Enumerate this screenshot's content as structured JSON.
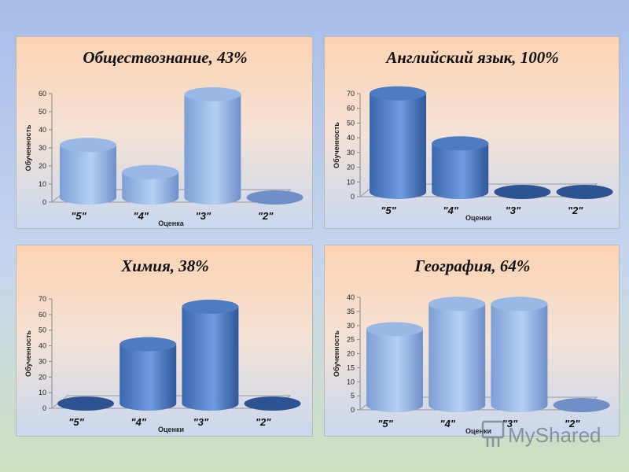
{
  "watermark": "MyShared",
  "chart_data": [
    {
      "type": "bar",
      "title": "Обществознание, 43%",
      "categories": [
        "\"5\"",
        "\"4\"",
        "\"3\"",
        "\"2\""
      ],
      "values": [
        29,
        14,
        57,
        0
      ],
      "xlabel": "Оценка",
      "ylabel": "Обученность",
      "yticks": [
        0,
        10,
        20,
        30,
        40,
        50,
        60
      ],
      "ylim": [
        0,
        60
      ],
      "style": "light"
    },
    {
      "type": "bar",
      "title": "Английский язык, 100%",
      "categories": [
        "\"5\"",
        "\"4\"",
        "\"3\"",
        "\"2\""
      ],
      "values": [
        67,
        33,
        0,
        0
      ],
      "xlabel": "Оценки",
      "ylabel": "Обученность",
      "yticks": [
        0,
        10,
        20,
        30,
        40,
        50,
        60,
        70
      ],
      "ylim": [
        0,
        70
      ],
      "style": "dark"
    },
    {
      "type": "bar",
      "title": "Химия, 38%",
      "categories": [
        "\"5\"",
        "\"4\"",
        "\"3\"",
        "\"2\""
      ],
      "values": [
        0,
        38,
        62,
        0
      ],
      "xlabel": "Оценки",
      "ylabel": "Обученность",
      "yticks": [
        0,
        10,
        20,
        30,
        40,
        50,
        60,
        70
      ],
      "ylim": [
        0,
        70
      ],
      "style": "dark"
    },
    {
      "type": "bar",
      "title": "География, 64%",
      "categories": [
        "\"5\"",
        "\"4\"",
        "\"3\"",
        "\"2\""
      ],
      "values": [
        27,
        36,
        36,
        0
      ],
      "xlabel": "Оценки",
      "ylabel": "Обученность",
      "yticks": [
        0,
        5,
        10,
        15,
        20,
        25,
        30,
        35,
        40
      ],
      "ylim": [
        0,
        40
      ],
      "style": "light"
    }
  ]
}
